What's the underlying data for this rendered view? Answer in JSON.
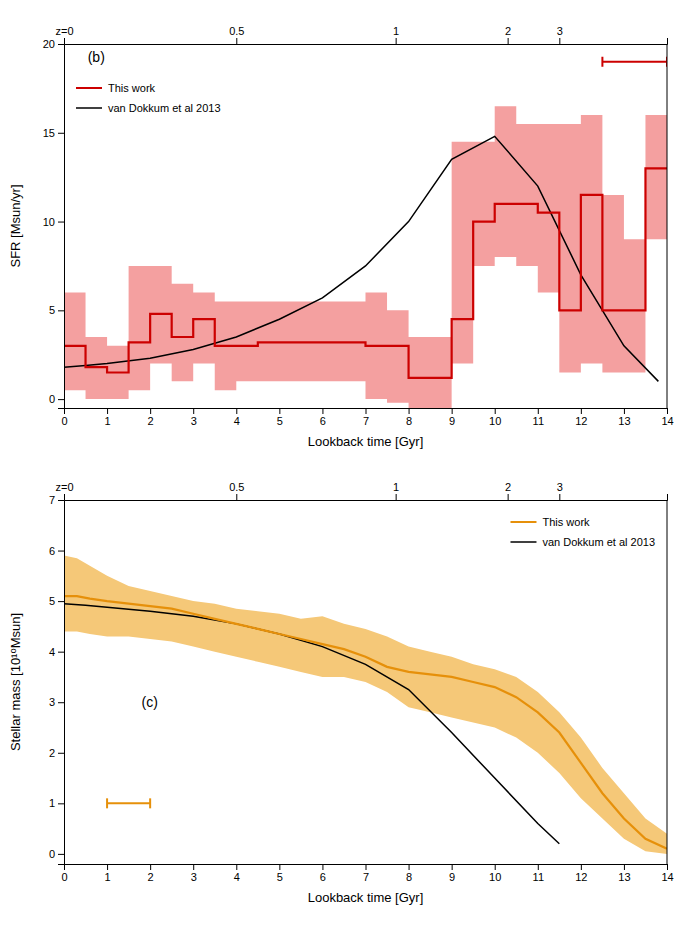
{
  "chart_data": [
    {
      "type": "step",
      "xlabel": "Lookback time [Gyr]",
      "ylabel": "SFR [Msun/yr]",
      "xlim": [
        0,
        14
      ],
      "ylim": [
        -0.5,
        20
      ],
      "xticks": [
        0,
        1,
        2,
        3,
        4,
        5,
        6,
        7,
        8,
        9,
        10,
        11,
        12,
        13,
        14
      ],
      "yticks": [
        0,
        5,
        10,
        15,
        20
      ],
      "x2ticks": [
        {
          "value": 0,
          "label": "z=0"
        },
        {
          "value": 4.0,
          "label": "0.5"
        },
        {
          "value": 7.7,
          "label": "1"
        },
        {
          "value": 10.3,
          "label": "2"
        },
        {
          "value": 11.5,
          "label": "3"
        }
      ],
      "grid": false,
      "legend": "upper left",
      "annotations": [
        {
          "text": "(b)",
          "x": 0.55,
          "y": 19.0
        }
      ],
      "series": [
        {
          "name": "This work",
          "type": "step",
          "color": "#cc0000",
          "x": [
            0,
            0.5,
            1.0,
            1.5,
            2.0,
            2.5,
            3.0,
            3.5,
            4.0,
            4.5,
            5.0,
            5.5,
            6.0,
            6.5,
            7.0,
            7.5,
            8.0,
            8.5,
            9.0,
            9.5,
            10.0,
            10.5,
            11.0,
            11.5,
            12.0,
            12.5,
            13.0,
            13.5,
            14.0
          ],
          "values": [
            3.0,
            1.8,
            1.5,
            3.2,
            4.8,
            3.5,
            4.5,
            3.0,
            3.0,
            3.2,
            3.2,
            3.2,
            3.2,
            3.2,
            3.0,
            3.0,
            1.2,
            1.2,
            4.5,
            10.0,
            11.0,
            11.0,
            10.5,
            5.0,
            11.5,
            5.0,
            5.0,
            13.0,
            13.0
          ],
          "band": {
            "color": "#f4a0a0",
            "upper": [
              6.0,
              3.5,
              3.0,
              7.5,
              7.5,
              6.5,
              6.0,
              5.5,
              5.5,
              5.5,
              5.5,
              5.5,
              5.5,
              5.5,
              6.0,
              5.0,
              3.5,
              3.5,
              14.5,
              14.5,
              16.5,
              15.5,
              15.5,
              15.5,
              16.0,
              11.5,
              9.0,
              16.0,
              16.0
            ],
            "lower": [
              0.5,
              0.0,
              0.0,
              0.5,
              2.0,
              1.0,
              2.0,
              0.5,
              1.0,
              1.0,
              1.0,
              1.0,
              1.0,
              1.0,
              0.0,
              -0.2,
              -0.5,
              -0.5,
              2.0,
              7.5,
              8.0,
              7.5,
              6.0,
              1.5,
              2.0,
              1.5,
              1.5,
              9.0,
              9.0
            ]
          }
        },
        {
          "name": "van Dokkum et al 2013",
          "type": "line",
          "color": "#000000",
          "x": [
            0,
            0.5,
            1,
            2,
            3,
            4,
            5,
            6,
            7,
            8,
            9,
            10,
            11,
            12,
            13,
            13.8
          ],
          "values": [
            1.8,
            1.9,
            2.0,
            2.3,
            2.8,
            3.5,
            4.5,
            5.7,
            7.5,
            10.0,
            13.5,
            14.8,
            12.0,
            7.0,
            3.0,
            1.0
          ]
        }
      ],
      "error_bar": {
        "x": 13.25,
        "xerr": 0.75,
        "y": 19.0,
        "color": "#cc0000"
      }
    },
    {
      "type": "line",
      "xlabel": "Lookback time [Gyr]",
      "ylabel": "Stellar mass [10¹⁰Msun]",
      "xlim": [
        0,
        14
      ],
      "ylim": [
        -0.2,
        7
      ],
      "xticks": [
        0,
        1,
        2,
        3,
        4,
        5,
        6,
        7,
        8,
        9,
        10,
        11,
        12,
        13,
        14
      ],
      "yticks": [
        0,
        1,
        2,
        3,
        4,
        5,
        6,
        7
      ],
      "x2ticks": [
        {
          "value": 0,
          "label": "z=0"
        },
        {
          "value": 4.0,
          "label": "0.5"
        },
        {
          "value": 7.7,
          "label": "1"
        },
        {
          "value": 10.3,
          "label": "2"
        },
        {
          "value": 11.5,
          "label": "3"
        }
      ],
      "grid": false,
      "legend": "upper right",
      "annotations": [
        {
          "text": "(c)",
          "x": 1.8,
          "y": 2.9
        }
      ],
      "series": [
        {
          "name": "This work",
          "type": "line",
          "color": "#e6900a",
          "x": [
            0,
            0.3,
            0.6,
            1.0,
            1.5,
            2.0,
            2.5,
            3.0,
            3.5,
            4.0,
            4.5,
            5.0,
            5.5,
            6.0,
            6.5,
            7.0,
            7.5,
            8.0,
            8.5,
            9.0,
            9.5,
            10.0,
            10.5,
            11.0,
            11.5,
            12.0,
            12.5,
            13.0,
            13.5,
            14.0
          ],
          "values": [
            5.1,
            5.1,
            5.05,
            5.0,
            4.95,
            4.9,
            4.85,
            4.75,
            4.65,
            4.55,
            4.45,
            4.35,
            4.25,
            4.15,
            4.05,
            3.9,
            3.7,
            3.6,
            3.55,
            3.5,
            3.4,
            3.3,
            3.1,
            2.8,
            2.4,
            1.8,
            1.2,
            0.7,
            0.3,
            0.1
          ],
          "band": {
            "color": "#f5c878",
            "upper": [
              5.9,
              5.85,
              5.7,
              5.5,
              5.3,
              5.2,
              5.1,
              5.0,
              4.95,
              4.85,
              4.8,
              4.75,
              4.65,
              4.7,
              4.55,
              4.45,
              4.3,
              4.1,
              4.0,
              3.9,
              3.75,
              3.65,
              3.5,
              3.2,
              2.8,
              2.3,
              1.7,
              1.2,
              0.7,
              0.4
            ],
            "lower": [
              4.4,
              4.4,
              4.35,
              4.3,
              4.3,
              4.25,
              4.2,
              4.1,
              4.0,
              3.9,
              3.8,
              3.7,
              3.6,
              3.5,
              3.5,
              3.4,
              3.2,
              2.9,
              2.8,
              2.7,
              2.6,
              2.5,
              2.3,
              2.0,
              1.6,
              1.1,
              0.7,
              0.3,
              0.05,
              0.0
            ]
          }
        },
        {
          "name": "van Dokkum et al 2013",
          "type": "line",
          "color": "#000000",
          "x": [
            0,
            0.5,
            1,
            2,
            3,
            4,
            5,
            6,
            7,
            8,
            9,
            10,
            11,
            11.5
          ],
          "values": [
            4.95,
            4.92,
            4.88,
            4.8,
            4.7,
            4.55,
            4.35,
            4.1,
            3.75,
            3.25,
            2.4,
            1.5,
            0.6,
            0.2
          ]
        }
      ],
      "error_bar": {
        "x": 1.5,
        "xerr": 0.5,
        "y": 1.0,
        "color": "#e6900a"
      }
    }
  ]
}
